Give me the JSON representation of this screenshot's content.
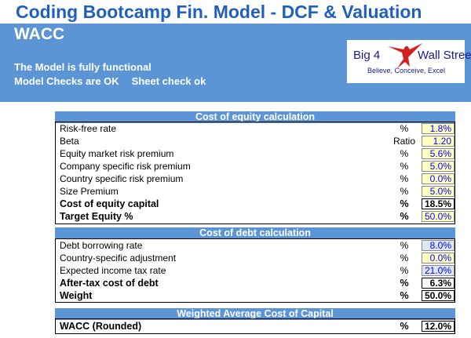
{
  "title": "Coding Bootcamp Fin. Model - DCF & Valuation",
  "sheet_name": "WACC",
  "status": {
    "line1": "The Model is fully functional",
    "model_checks": "Model Checks are OK",
    "sheet_check": "Sheet check ok"
  },
  "logo": {
    "left_text": "Big 4",
    "right_text": "Wall Street",
    "tagline": "Believe, Conceive, Excel",
    "icon": "eagle-icon"
  },
  "colors": {
    "title_blue": "#1f5fbf",
    "header_band": "#5b95d5",
    "input_yellow": "#ffffc0",
    "input_blue": "#dde7f4",
    "input_text": "#0000ff"
  },
  "cost_of_equity": {
    "header": "Cost of equity calculation",
    "rows": [
      {
        "label": "Risk-free rate",
        "unit": "%",
        "value": "1.8%"
      },
      {
        "label": "Beta",
        "unit": "Ratio",
        "value": "1.20"
      },
      {
        "label": "Equity market risk premium",
        "unit": "%",
        "value": "5.6%"
      },
      {
        "label": "Company specific risk premium",
        "unit": "%",
        "value": "5.0%"
      },
      {
        "label": "Country specific risk premium",
        "unit": "%",
        "value": "0.0%"
      },
      {
        "label": "Size Premium",
        "unit": "%",
        "value": "5.0%"
      },
      {
        "label": "Cost of equity capital",
        "unit": "%",
        "value": "18.5%"
      },
      {
        "label": "Target Equity %",
        "unit": "%",
        "value": "50.0%"
      }
    ]
  },
  "cost_of_debt": {
    "header": "Cost of debt calculation",
    "rows": [
      {
        "label": "Debt borrowing rate",
        "unit": "%",
        "value": "8.0%"
      },
      {
        "label": "Country-specific adjustment",
        "unit": "%",
        "value": "0.0%"
      },
      {
        "label": "Expected income tax rate",
        "unit": "%",
        "value": "21.0%"
      },
      {
        "label": "After-tax cost of debt",
        "unit": "%",
        "value": "6.3%"
      },
      {
        "label": "Weight",
        "unit": "%",
        "value": "50.0%"
      }
    ]
  },
  "wacc": {
    "header": "Weighted Average Cost of Capital",
    "label": "WACC (Rounded)",
    "unit": "%",
    "value": "12.0%"
  }
}
